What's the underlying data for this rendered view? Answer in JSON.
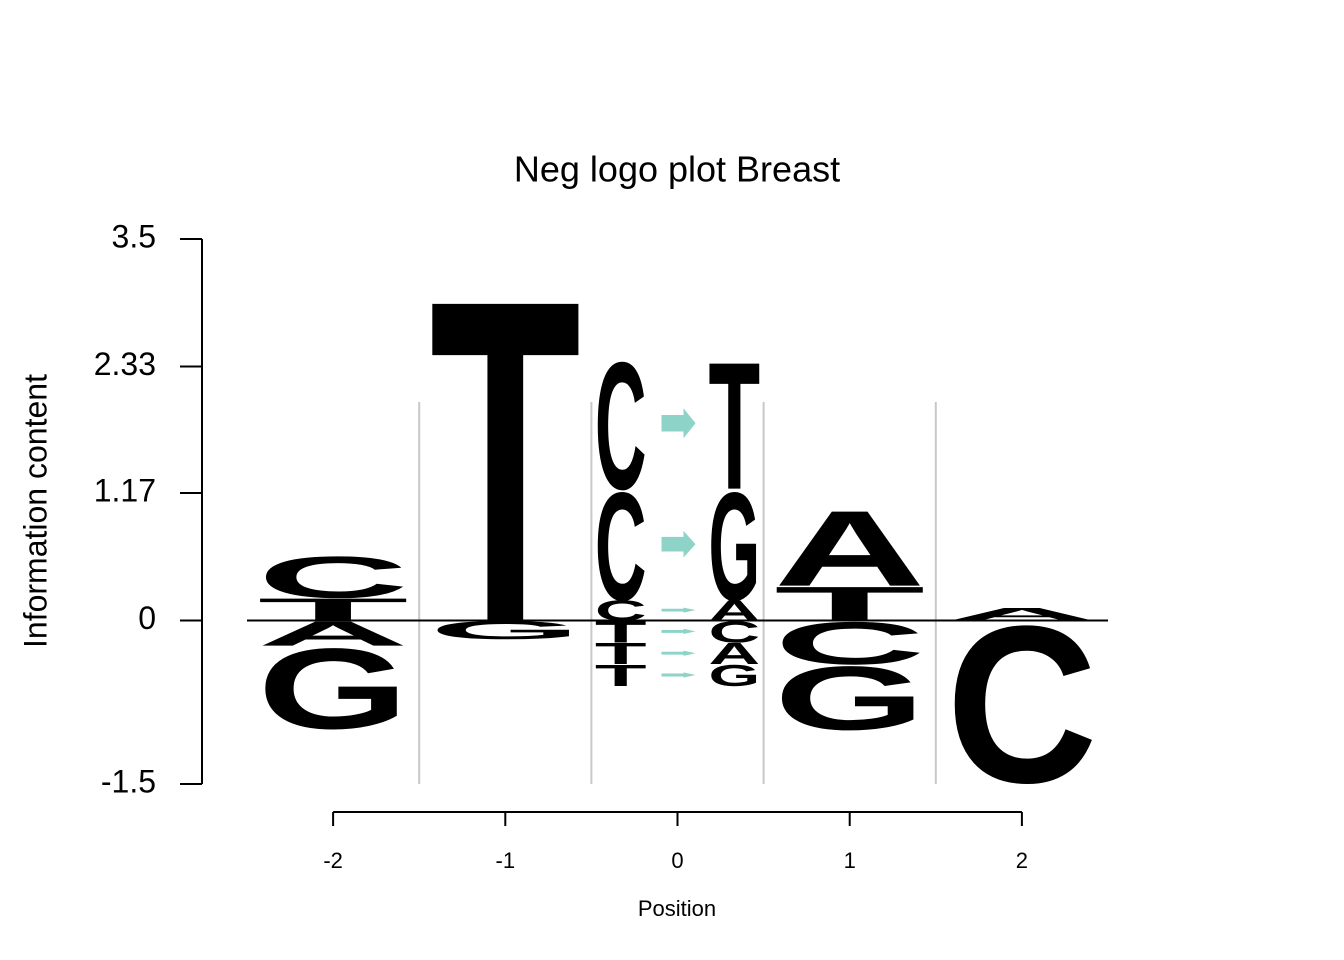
{
  "chart_data": {
    "type": "logo",
    "title": "Neg logo plot Breast",
    "x_label": "Position",
    "y_label": "Information content",
    "xlim": [
      -2.5,
      2.5
    ],
    "xticks": [
      -2,
      -1,
      0,
      1,
      2
    ],
    "ylim": [
      -1.5,
      3.5
    ],
    "yticks": [
      3.5,
      2.33,
      1.17,
      0,
      -1.5
    ],
    "colors": {
      "A": "#bfbadb",
      "C": "#fb9a99",
      "G": "#c35a1d",
      "T": "#e4c493",
      "arrow": "#8dd3c7"
    },
    "stacks": [
      {
        "x": -2,
        "letters": [
          "T",
          "C",
          "A",
          "G"
        ],
        "values": [
          0.21,
          0.39,
          -0.23,
          -0.76
        ]
      },
      {
        "x": -1,
        "letters": [
          "T",
          "G"
        ],
        "values": [
          3.04,
          -0.17
        ]
      },
      {
        "x": 1,
        "letters": [
          "T",
          "A",
          "C",
          "G"
        ],
        "values": [
          0.32,
          0.71,
          -0.4,
          -0.6
        ]
      },
      {
        "x": 2,
        "letters": [
          "A",
          "C"
        ],
        "values": [
          0.12,
          -1.48
        ]
      }
    ],
    "substitutions": {
      "x": 0,
      "ref_letters": [
        "C",
        "C",
        "C",
        "T",
        "T",
        "T"
      ],
      "alt_letters": [
        "A",
        "G",
        "T",
        "C",
        "A",
        "G"
      ],
      "values": [
        0.19,
        1.02,
        1.2,
        -0.2,
        -0.2,
        -0.2
      ]
    }
  }
}
